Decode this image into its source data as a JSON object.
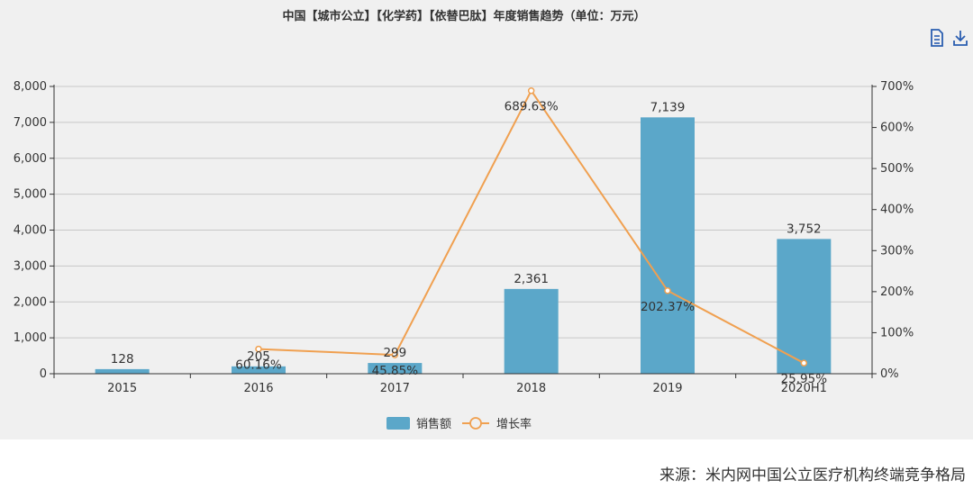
{
  "chart_data": {
    "type": "bar",
    "title": "中国【城市公立】【化学药】【依替巴肽】年度销售趋势（单位：万元）",
    "categories": [
      "2015",
      "2016",
      "2017",
      "2018",
      "2019",
      "2020H1"
    ],
    "series": [
      {
        "name": "销售额",
        "type": "bar",
        "axis": "left",
        "values": [
          128,
          205,
          299,
          2361,
          7139,
          3752
        ],
        "labels": [
          "128",
          "205",
          "299",
          "2,361",
          "7,139",
          "3,752"
        ],
        "color": "#5ba7c9"
      },
      {
        "name": "增长率",
        "type": "line",
        "axis": "right",
        "values": [
          null,
          60.16,
          45.85,
          689.63,
          202.37,
          25.95
        ],
        "labels": [
          "",
          "60.16%",
          "45.85%",
          "689.63%",
          "202.37%",
          "25.95%"
        ],
        "color": "#f0a050"
      }
    ],
    "y_left": {
      "min": 0,
      "max": 8000,
      "ticks": [
        "0",
        "1,000",
        "2,000",
        "3,000",
        "4,000",
        "5,000",
        "6,000",
        "7,000",
        "8,000"
      ]
    },
    "y_right": {
      "min": 0,
      "max": 700,
      "ticks": [
        "0%",
        "100%",
        "200%",
        "300%",
        "400%",
        "500%",
        "600%",
        "700%"
      ]
    },
    "grid": true,
    "legend_position": "bottom-center"
  },
  "toolbar": {
    "data_view_icon": "document-icon",
    "download_icon": "download-icon"
  },
  "source": "来源：米内网中国公立医疗机构终端竞争格局"
}
